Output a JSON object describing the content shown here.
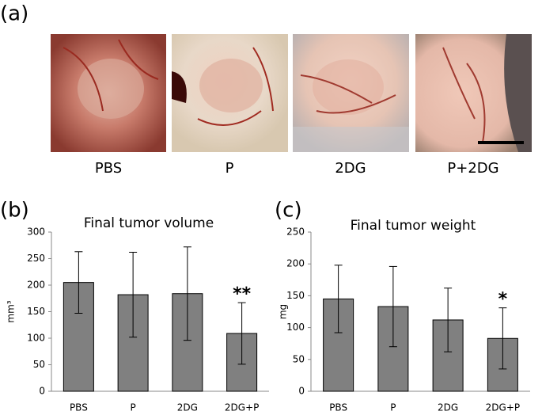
{
  "panel_labels": [
    "(a)",
    "(b)",
    "(c)"
  ],
  "photos": [
    {
      "label": "PBS"
    },
    {
      "label": "P"
    },
    {
      "label": "2DG"
    },
    {
      "label": "P+2DG"
    }
  ],
  "chart_data": [
    {
      "type": "bar",
      "title": "Final tumor volume",
      "y_label": "mm³",
      "categories": [
        "PBS",
        "P",
        "2DG",
        "2DG+P"
      ],
      "values": [
        205,
        182,
        184,
        109
      ],
      "errors": [
        58,
        80,
        88,
        58
      ],
      "color": "#808080",
      "ylim": [
        0,
        300
      ],
      "yticks": [
        0,
        50,
        100,
        150,
        200,
        250,
        300
      ],
      "annotations": [
        {
          "category": "2DG+P",
          "text": "**"
        }
      ]
    },
    {
      "type": "bar",
      "title": "Final tumor weight",
      "y_label": "mg",
      "categories": [
        "PBS",
        "P",
        "2DG",
        "2DG+P"
      ],
      "values": [
        145,
        133,
        112,
        83
      ],
      "errors": [
        53,
        63,
        50,
        48
      ],
      "color": "#808080",
      "ylim": [
        0,
        250
      ],
      "yticks": [
        0,
        50,
        100,
        150,
        200,
        250
      ],
      "annotations": [
        {
          "category": "2DG+P",
          "text": "*"
        }
      ]
    }
  ]
}
